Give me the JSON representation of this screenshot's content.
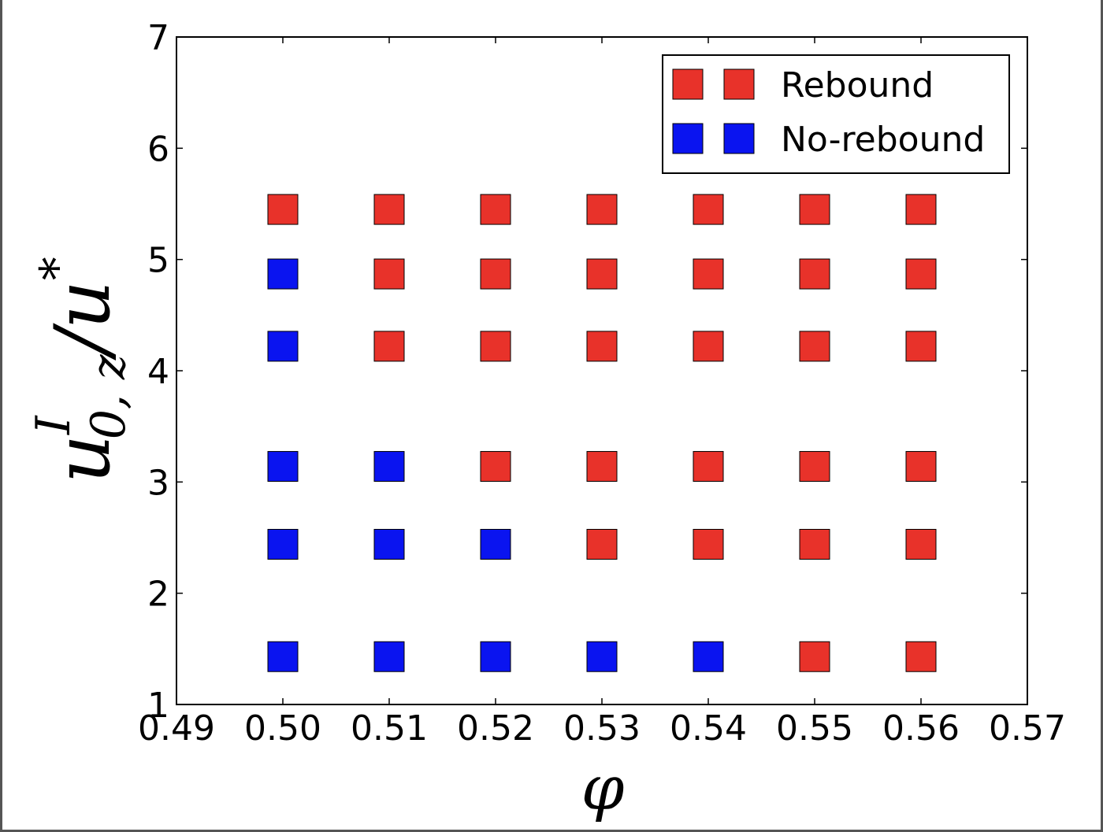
{
  "chart_data": {
    "type": "scatter",
    "title": "",
    "xlabel": "φ",
    "ylabel": {
      "base": "u",
      "sup": "I",
      "sub": "0, z",
      "slash": "/",
      "base2": "u",
      "sup2": "*"
    },
    "xlim": [
      0.49,
      0.57
    ],
    "ylim": [
      1,
      7
    ],
    "x_ticks": [
      "0.49",
      "0.50",
      "0.51",
      "0.52",
      "0.53",
      "0.54",
      "0.55",
      "0.56",
      "0.57"
    ],
    "y_ticks": [
      "1",
      "2",
      "3",
      "4",
      "5",
      "6",
      "7"
    ],
    "grid": false,
    "legend_position": "top-right",
    "series": [
      {
        "name": "Rebound",
        "color": "#e8322a",
        "marker": "square",
        "points": [
          [
            0.5,
            5.45
          ],
          [
            0.51,
            5.45
          ],
          [
            0.51,
            4.87
          ],
          [
            0.51,
            4.22
          ],
          [
            0.52,
            5.45
          ],
          [
            0.52,
            4.87
          ],
          [
            0.52,
            4.22
          ],
          [
            0.52,
            3.14
          ],
          [
            0.53,
            5.45
          ],
          [
            0.53,
            4.87
          ],
          [
            0.53,
            4.22
          ],
          [
            0.53,
            3.14
          ],
          [
            0.53,
            2.44
          ],
          [
            0.54,
            5.45
          ],
          [
            0.54,
            4.87
          ],
          [
            0.54,
            4.22
          ],
          [
            0.54,
            3.14
          ],
          [
            0.54,
            2.44
          ],
          [
            0.55,
            5.45
          ],
          [
            0.55,
            4.87
          ],
          [
            0.55,
            4.22
          ],
          [
            0.55,
            3.14
          ],
          [
            0.55,
            2.44
          ],
          [
            0.55,
            1.43
          ],
          [
            0.56,
            5.45
          ],
          [
            0.56,
            4.87
          ],
          [
            0.56,
            4.22
          ],
          [
            0.56,
            3.14
          ],
          [
            0.56,
            2.44
          ],
          [
            0.56,
            1.43
          ]
        ]
      },
      {
        "name": "No-rebound",
        "color": "#0a14f0",
        "marker": "square",
        "points": [
          [
            0.5,
            4.87
          ],
          [
            0.5,
            4.22
          ],
          [
            0.5,
            3.14
          ],
          [
            0.5,
            2.44
          ],
          [
            0.5,
            1.43
          ],
          [
            0.51,
            3.14
          ],
          [
            0.51,
            2.44
          ],
          [
            0.51,
            1.43
          ],
          [
            0.52,
            2.44
          ],
          [
            0.52,
            1.43
          ],
          [
            0.53,
            1.43
          ],
          [
            0.54,
            1.43
          ]
        ]
      }
    ]
  }
}
